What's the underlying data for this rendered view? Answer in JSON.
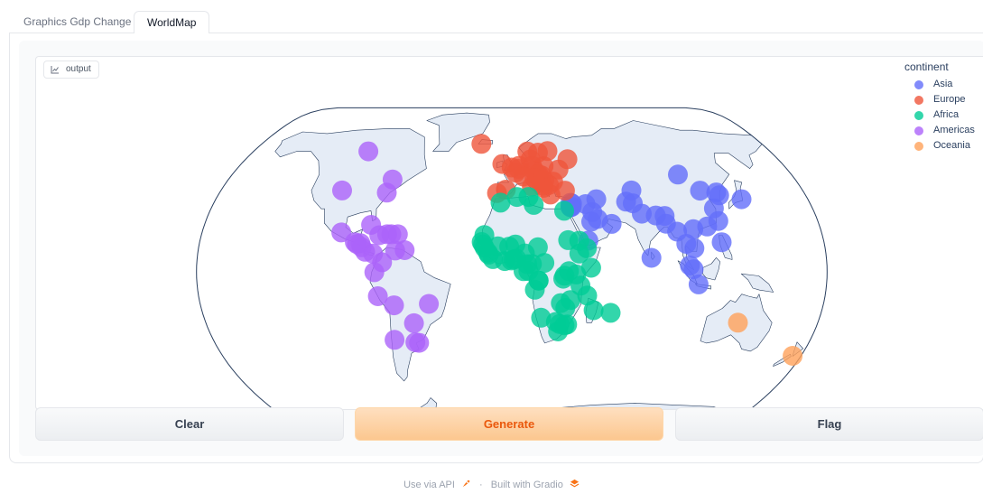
{
  "tabs": [
    {
      "label": "Graphics Gdp Change",
      "active": false
    },
    {
      "label": "WorldMap",
      "active": true
    }
  ],
  "output": {
    "label": "output"
  },
  "buttons": {
    "clear": "Clear",
    "generate": "Generate",
    "flag": "Flag"
  },
  "footer": {
    "api": "Use via API",
    "separator": "·",
    "built": "Built with Gradio"
  },
  "colors": {
    "Asia": "#636efa",
    "Europe": "#ef553b",
    "Africa": "#00cc96",
    "Americas": "#ab63fa",
    "Oceania": "#ffa15a",
    "land": "#e5ecf6",
    "coast": "#2a3f5f",
    "generate_text": "#ea580c"
  },
  "chart_data": {
    "type": "scatter",
    "projection": "natural earth",
    "legend_title": "continent",
    "legend_position": "top-right",
    "series": [
      {
        "name": "Asia",
        "color": "#636efa",
        "points": [
          [
            69.2,
            34.5
          ],
          [
            50.6,
            26.0
          ],
          [
            90.4,
            23.7
          ],
          [
            104.9,
            11.6
          ],
          [
            116.4,
            39.9
          ],
          [
            114.2,
            22.3
          ],
          [
            77.2,
            28.6
          ],
          [
            106.8,
            -6.2
          ],
          [
            51.4,
            35.7
          ],
          [
            44.4,
            33.3
          ],
          [
            35.2,
            31.8
          ],
          [
            139.7,
            35.7
          ],
          [
            35.9,
            31.9
          ],
          [
            126.0,
            39.0
          ],
          [
            127.0,
            37.6
          ],
          [
            47.9,
            29.4
          ],
          [
            35.5,
            33.9
          ],
          [
            101.7,
            3.1
          ],
          [
            106.9,
            47.9
          ],
          [
            96.1,
            19.8
          ],
          [
            85.3,
            27.7
          ],
          [
            58.5,
            23.6
          ],
          [
            73.0,
            33.7
          ],
          [
            121.0,
            14.6
          ],
          [
            46.7,
            24.7
          ],
          [
            103.8,
            1.3
          ],
          [
            79.9,
            6.9
          ],
          [
            36.3,
            33.5
          ],
          [
            121.5,
            25.0
          ],
          [
            100.5,
            13.8
          ],
          [
            105.8,
            21.0
          ],
          [
            35.2,
            31.9
          ],
          [
            44.2,
            15.4
          ],
          [
            121.0,
            31.2
          ],
          [
            74.0,
            40.0
          ],
          [
            90.5,
            27.5
          ]
        ]
      },
      {
        "name": "Europe",
        "color": "#ef553b",
        "points": [
          [
            19.8,
            41.3
          ],
          [
            16.4,
            48.2
          ],
          [
            4.4,
            50.8
          ],
          [
            18.4,
            43.9
          ],
          [
            23.3,
            42.7
          ],
          [
            16.0,
            45.8
          ],
          [
            14.4,
            50.1
          ],
          [
            12.6,
            55.7
          ],
          [
            24.9,
            60.2
          ],
          [
            2.4,
            48.9
          ],
          [
            13.4,
            52.5
          ],
          [
            23.7,
            38.0
          ],
          [
            19.0,
            47.5
          ],
          [
            -21.9,
            64.1
          ],
          [
            -6.3,
            53.3
          ],
          [
            12.5,
            41.9
          ],
          [
            19.3,
            42.4
          ],
          [
            4.9,
            52.4
          ],
          [
            10.8,
            59.9
          ],
          [
            21.0,
            52.2
          ],
          [
            -9.1,
            38.7
          ],
          [
            26.1,
            44.4
          ],
          [
            20.5,
            44.8
          ],
          [
            17.1,
            48.1
          ],
          [
            14.5,
            46.1
          ],
          [
            -3.7,
            40.4
          ],
          [
            18.1,
            59.3
          ],
          [
            7.4,
            46.9
          ],
          [
            32.9,
            39.9
          ],
          [
            -0.1,
            51.5
          ],
          [
            30.5,
            50.5
          ],
          [
            37.6,
            55.8
          ]
        ]
      },
      {
        "name": "Africa",
        "color": "#00cc96",
        "points": [
          [
            3.1,
            36.8
          ],
          [
            13.2,
            -8.8
          ],
          [
            2.6,
            6.5
          ],
          [
            25.9,
            -24.6
          ],
          [
            -1.5,
            12.4
          ],
          [
            29.4,
            -3.4
          ],
          [
            11.5,
            3.9
          ],
          [
            18.6,
            4.4
          ],
          [
            15.0,
            12.1
          ],
          [
            43.3,
            -11.7
          ],
          [
            15.3,
            -4.3
          ],
          [
            15.3,
            -4.3
          ],
          [
            -4.0,
            5.3
          ],
          [
            43.1,
            11.6
          ],
          [
            31.2,
            30.0
          ],
          [
            8.8,
            3.8
          ],
          [
            38.9,
            15.3
          ],
          [
            38.7,
            9.0
          ],
          [
            9.5,
            0.4
          ],
          [
            -16.6,
            13.5
          ],
          [
            -0.2,
            5.6
          ],
          [
            -13.7,
            9.5
          ],
          [
            -15.6,
            11.9
          ],
          [
            36.8,
            -1.3
          ],
          [
            27.5,
            -29.3
          ],
          [
            -10.8,
            6.3
          ],
          [
            13.2,
            32.9
          ],
          [
            47.5,
            -18.9
          ],
          [
            33.8,
            -13.9
          ],
          [
            -8.0,
            12.6
          ],
          [
            -15.9,
            18.1
          ],
          [
            57.5,
            -20.2
          ],
          [
            -6.8,
            34.0
          ],
          [
            32.6,
            -25.9
          ],
          [
            17.1,
            -22.6
          ],
          [
            2.1,
            13.5
          ],
          [
            7.5,
            9.1
          ],
          [
            30.1,
            -1.9
          ],
          [
            6.7,
            0.3
          ],
          [
            -17.4,
            14.7
          ],
          [
            -13.2,
            8.5
          ],
          [
            45.3,
            2.0
          ],
          [
            28.2,
            -25.7
          ],
          [
            32.5,
            15.6
          ],
          [
            31.1,
            -26.3
          ],
          [
            39.3,
            -6.8
          ],
          [
            1.2,
            6.1
          ],
          [
            10.2,
            36.8
          ],
          [
            32.6,
            0.3
          ],
          [
            28.3,
            -15.4
          ],
          [
            31.0,
            -17.8
          ]
        ]
      },
      {
        "name": "Americas",
        "color": "#ab63fa",
        "points": [
          [
            -58.4,
            -34.6
          ],
          [
            -68.1,
            -16.5
          ],
          [
            -47.9,
            -15.8
          ],
          [
            -75.7,
            45.4
          ],
          [
            -70.7,
            -33.4
          ],
          [
            -74.1,
            4.7
          ],
          [
            -84.1,
            9.9
          ],
          [
            -82.4,
            23.1
          ],
          [
            -69.9,
            18.5
          ],
          [
            -78.5,
            -0.2
          ],
          [
            -89.2,
            13.7
          ],
          [
            -90.5,
            14.6
          ],
          [
            -72.3,
            18.5
          ],
          [
            -87.2,
            14.1
          ],
          [
            -76.8,
            18.0
          ],
          [
            -99.1,
            19.4
          ],
          [
            -86.3,
            12.1
          ],
          [
            -79.5,
            9.0
          ],
          [
            -57.6,
            -25.3
          ],
          [
            -77.0,
            -12.0
          ],
          [
            -66.1,
            18.5
          ],
          [
            -61.5,
            10.7
          ],
          [
            -77.0,
            38.9
          ],
          [
            -56.2,
            -34.9
          ],
          [
            -66.9,
            10.5
          ],
          [
            -100.0,
            60.0
          ],
          [
            -105.0,
            40.0
          ]
        ]
      },
      {
        "name": "Oceania",
        "color": "#ffa15a",
        "points": [
          [
            133.0,
            -25.0
          ],
          [
            174.8,
            -41.3
          ]
        ]
      }
    ]
  }
}
